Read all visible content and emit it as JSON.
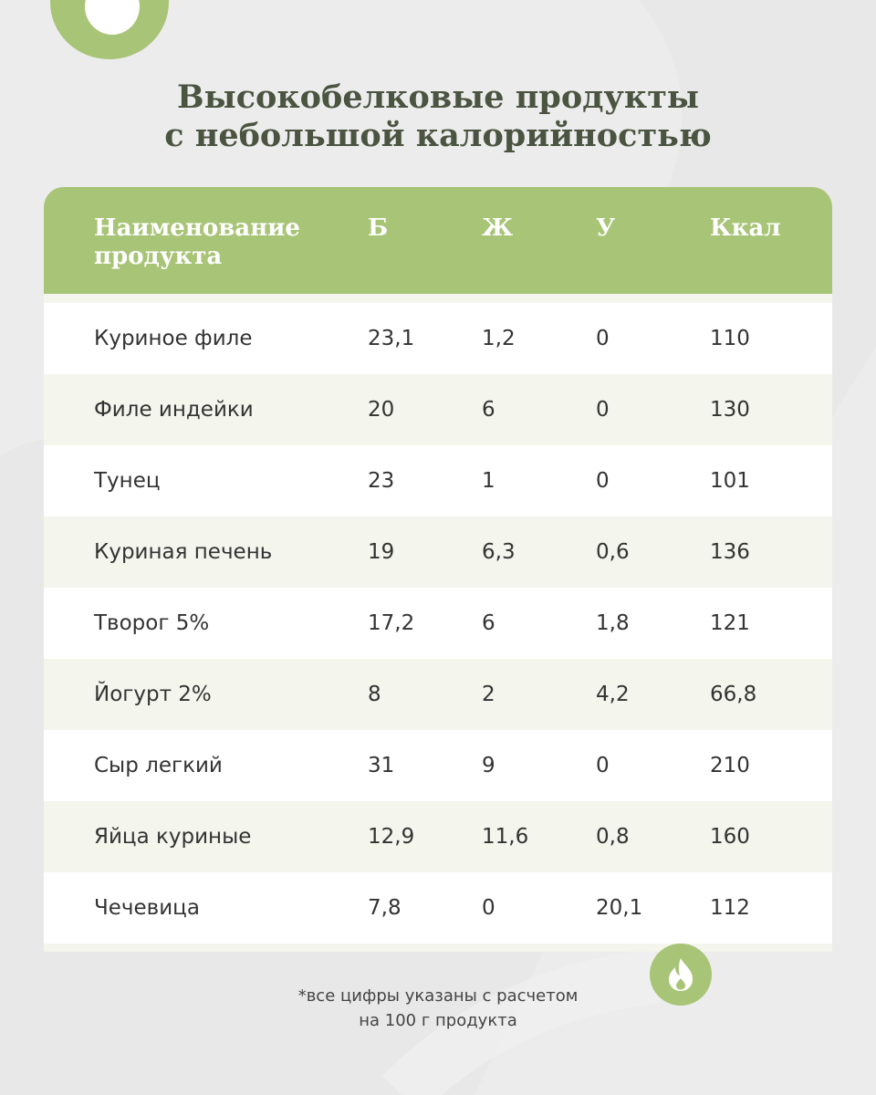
{
  "title": {
    "line1": "Высокобелковые продукты",
    "line2": "с небольшой калорийностью"
  },
  "table": {
    "headers": {
      "name_line1": "Наименование",
      "name_line2": "продукта",
      "protein": "Б",
      "fat": "Ж",
      "carbs": "У",
      "kcal": "Ккал"
    },
    "rows": [
      {
        "name": "Куриное филе",
        "protein": "23,1",
        "fat": "1,2",
        "carbs": "0",
        "kcal": "110"
      },
      {
        "name": "Филе индейки",
        "protein": "20",
        "fat": "6",
        "carbs": "0",
        "kcal": "130"
      },
      {
        "name": "Тунец",
        "protein": "23",
        "fat": "1",
        "carbs": "0",
        "kcal": "101"
      },
      {
        "name": "Куриная печень",
        "protein": "19",
        "fat": "6,3",
        "carbs": "0,6",
        "kcal": "136"
      },
      {
        "name": "Творог 5%",
        "protein": "17,2",
        "fat": "6",
        "carbs": "1,8",
        "kcal": "121"
      },
      {
        "name": "Йогурт 2%",
        "protein": "8",
        "fat": "2",
        "carbs": "4,2",
        "kcal": "66,8"
      },
      {
        "name": "Сыр легкий",
        "protein": "31",
        "fat": "9",
        "carbs": "0",
        "kcal": "210"
      },
      {
        "name": "Яйца куриные",
        "protein": "12,9",
        "fat": "11,6",
        "carbs": "0,8",
        "kcal": "160"
      },
      {
        "name": "Чечевица",
        "protein": "7,8",
        "fat": "0",
        "carbs": "20,1",
        "kcal": "112"
      }
    ]
  },
  "footnote": {
    "line1": "*все цифры указаны с расчетом",
    "line2": "на 100 г продукта"
  },
  "icons": {
    "top_badge": "circle-logo-icon",
    "bottom_badge": "fire-icon"
  },
  "colors": {
    "accent": "#a8c477",
    "background": "#e8e8e8",
    "title": "#4a5440",
    "row_tint": "#f4f5ed",
    "row_white": "#ffffff"
  }
}
